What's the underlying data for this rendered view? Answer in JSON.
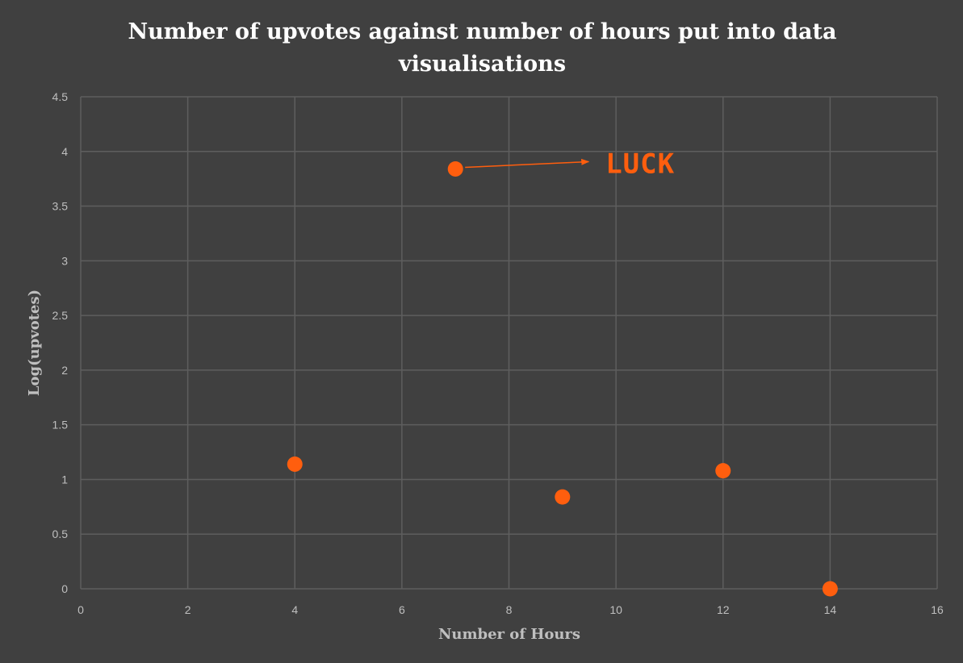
{
  "chart_data": {
    "type": "scatter",
    "title": "Number of upvotes against number of hours put into data visualisations",
    "xlabel": "Number of Hours",
    "ylabel": "Log(upvotes)",
    "xlim": [
      0,
      16
    ],
    "ylim": [
      0,
      4.5
    ],
    "x_ticks": [
      "0",
      "2",
      "4",
      "6",
      "8",
      "10",
      "12",
      "14",
      "16"
    ],
    "y_ticks": [
      "0",
      "0.5",
      "1",
      "1.5",
      "2",
      "2.5",
      "3",
      "3.5",
      "4",
      "4.5"
    ],
    "grid": true,
    "points": [
      {
        "x": 4,
        "y": 1.14
      },
      {
        "x": 7,
        "y": 3.84
      },
      {
        "x": 9,
        "y": 0.84
      },
      {
        "x": 12,
        "y": 1.08
      },
      {
        "x": 14,
        "y": 0.0
      }
    ],
    "annotations": [
      {
        "text": "LUCK",
        "points_to": {
          "x": 7,
          "y": 3.84
        }
      }
    ],
    "colors": {
      "background": "#404040",
      "grid": "#5e5e5e",
      "marker": "#ff5e0e",
      "text": "#bfbfbf",
      "title": "#ffffff"
    }
  }
}
